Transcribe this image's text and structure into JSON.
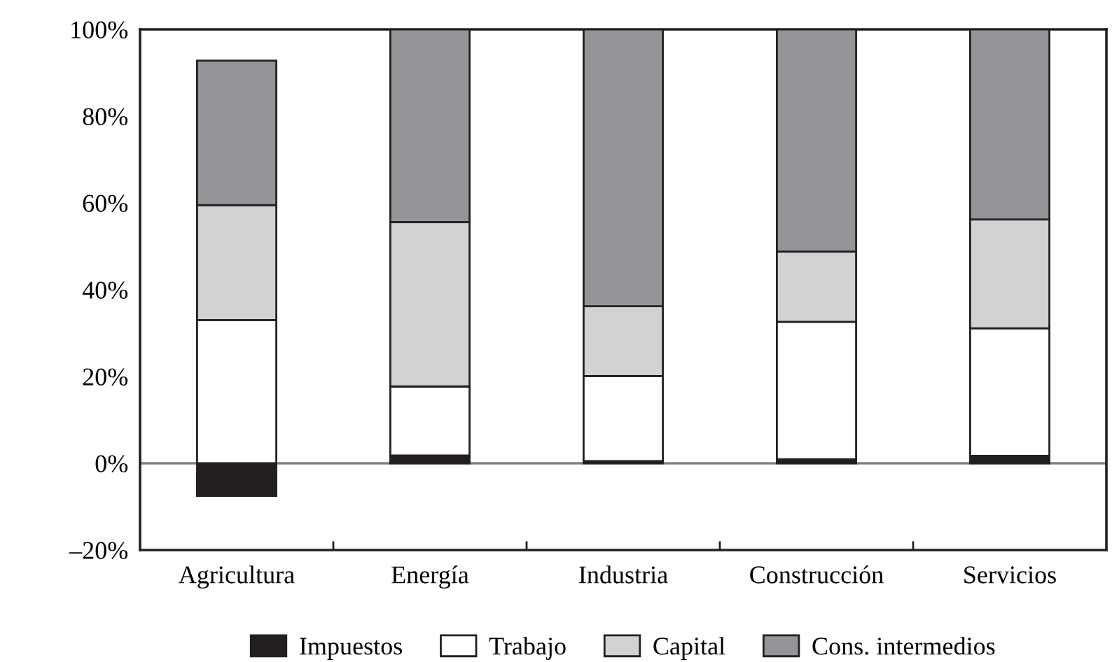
{
  "chart_data": {
    "type": "bar",
    "stacked": true,
    "categories": [
      "Agricultura",
      "Energía",
      "Industria",
      "Construcción",
      "Servicios"
    ],
    "series": [
      {
        "name": "Impuestos",
        "color": "#231f20",
        "values": [
          -7.5,
          1.8,
          0.5,
          0.9,
          1.7
        ]
      },
      {
        "name": "Trabajo",
        "color": "#ffffff",
        "values": [
          33.0,
          15.9,
          19.6,
          31.7,
          29.4
        ]
      },
      {
        "name": "Capital",
        "color": "#d1d2d4",
        "values": [
          26.5,
          37.9,
          16.1,
          16.2,
          25.1
        ]
      },
      {
        "name": "Cons. intermedios",
        "color": "#939598",
        "values": [
          33.3,
          44.4,
          63.8,
          51.2,
          43.8
        ]
      }
    ],
    "ylim": [
      -20,
      100
    ],
    "yticks": [
      {
        "value": -20,
        "label": "–20%"
      },
      {
        "value": 0,
        "label": "0%"
      },
      {
        "value": 20,
        "label": "20%"
      },
      {
        "value": 40,
        "label": "40%"
      },
      {
        "value": 60,
        "label": "60%"
      },
      {
        "value": 80,
        "label": "80%"
      },
      {
        "value": 100,
        "label": "100%"
      }
    ],
    "ref_lines": [
      {
        "axis": "y",
        "value": 0,
        "color": "#808080"
      }
    ],
    "grid": false,
    "legend": "bottom"
  }
}
